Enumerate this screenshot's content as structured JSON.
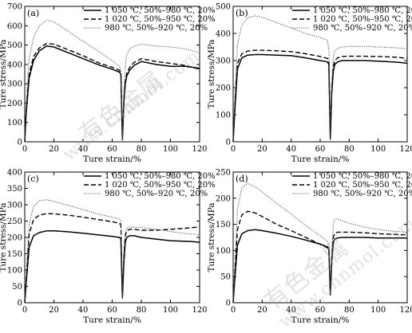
{
  "watermark": {
    "cn_text": "有色金属",
    "url_text": "www.cnnmol.com"
  },
  "chart_data": [
    {
      "type": "line",
      "panel_label": "(a)",
      "xlabel": "Ture strain/%",
      "ylabel": "Ture stress/MPa",
      "xlim": [
        0,
        120
      ],
      "ylim": [
        0,
        700
      ],
      "xticks": [
        0,
        20,
        40,
        60,
        80,
        100,
        120
      ],
      "yticks": [
        0,
        100,
        200,
        300,
        400,
        500,
        600,
        700
      ],
      "legend_position": "top-right",
      "series": [
        {
          "name": "1 050 ℃, 50%–980 ℃, 20%",
          "style": "solid",
          "x": [
            0,
            1,
            3,
            6,
            10,
            15,
            20,
            30,
            40,
            50,
            60,
            65,
            66,
            67,
            68,
            69,
            70,
            72,
            75,
            80,
            90,
            100,
            110,
            115,
            120
          ],
          "y": [
            0,
            150,
            330,
            420,
            470,
            495,
            490,
            460,
            430,
            400,
            375,
            360,
            350,
            10,
            200,
            300,
            340,
            370,
            395,
            415,
            400,
            390,
            390,
            385,
            380
          ]
        },
        {
          "name": "1 020 ℃, 50%–950 ℃, 20%",
          "style": "dashed",
          "x": [
            0,
            1,
            3,
            6,
            10,
            15,
            20,
            30,
            40,
            50,
            60,
            65,
            66,
            67,
            68,
            69,
            70,
            72,
            75,
            80,
            90,
            100,
            110,
            115,
            120
          ],
          "y": [
            0,
            160,
            350,
            440,
            485,
            508,
            505,
            475,
            445,
            410,
            385,
            370,
            355,
            10,
            210,
            310,
            355,
            385,
            410,
            430,
            415,
            405,
            395,
            385,
            375
          ]
        },
        {
          "name": "980 ℃, 50%–920 ℃, 20%",
          "style": "dotted",
          "x": [
            0,
            1,
            3,
            6,
            10,
            15,
            20,
            30,
            40,
            50,
            60,
            65,
            66,
            67,
            68,
            69,
            70,
            72,
            75,
            80,
            90,
            100,
            110,
            115,
            120
          ],
          "y": [
            0,
            200,
            430,
            540,
            600,
            630,
            620,
            570,
            520,
            470,
            420,
            390,
            370,
            10,
            250,
            390,
            450,
            480,
            495,
            505,
            495,
            490,
            480,
            470,
            460
          ]
        }
      ]
    },
    {
      "type": "line",
      "panel_label": "(b)",
      "xlabel": "Ture strain/%",
      "ylabel": "Ture stress/MPa",
      "xlim": [
        0,
        120
      ],
      "ylim": [
        0,
        500
      ],
      "xticks": [
        0,
        20,
        40,
        60,
        80,
        100,
        120
      ],
      "yticks": [
        0,
        100,
        200,
        300,
        400,
        500
      ],
      "legend_position": "top-right",
      "series": [
        {
          "name": "1 050 ℃, 50%–980 ℃, 20%",
          "style": "solid",
          "x": [
            0,
            1,
            3,
            6,
            10,
            15,
            20,
            30,
            40,
            50,
            60,
            65,
            66,
            67,
            68,
            69,
            70,
            72,
            75,
            80,
            90,
            100,
            110,
            115,
            120
          ],
          "y": [
            0,
            100,
            270,
            310,
            320,
            322,
            322,
            320,
            318,
            310,
            300,
            295,
            285,
            10,
            180,
            260,
            285,
            295,
            300,
            300,
            300,
            298,
            295,
            293,
            290
          ]
        },
        {
          "name": "1 020 ℃, 50%–950 ℃, 20%",
          "style": "dashed",
          "x": [
            0,
            1,
            3,
            6,
            10,
            15,
            20,
            30,
            40,
            50,
            60,
            65,
            66,
            67,
            68,
            69,
            70,
            72,
            75,
            80,
            90,
            100,
            110,
            115,
            120
          ],
          "y": [
            0,
            110,
            290,
            325,
            335,
            338,
            338,
            336,
            333,
            325,
            315,
            308,
            300,
            10,
            190,
            275,
            300,
            310,
            315,
            316,
            316,
            315,
            313,
            311,
            308
          ]
        },
        {
          "name": "980 ℃, 50%–920 ℃, 20%",
          "style": "dotted",
          "x": [
            0,
            1,
            3,
            6,
            10,
            15,
            20,
            30,
            40,
            50,
            60,
            65,
            66,
            67,
            68,
            69,
            70,
            72,
            75,
            80,
            90,
            100,
            110,
            115,
            120
          ],
          "y": [
            0,
            150,
            360,
            430,
            458,
            465,
            460,
            440,
            420,
            400,
            385,
            375,
            340,
            10,
            220,
            310,
            335,
            345,
            350,
            352,
            352,
            350,
            348,
            346,
            343
          ]
        }
      ]
    },
    {
      "type": "line",
      "panel_label": "(c)",
      "xlabel": "Ture strain/%",
      "ylabel": "Ture stress/MPa",
      "xlim": [
        0,
        120
      ],
      "ylim": [
        0,
        400
      ],
      "xticks": [
        0,
        20,
        40,
        60,
        80,
        100,
        120
      ],
      "yticks": [
        0,
        50,
        100,
        150,
        200,
        250,
        300,
        350,
        400
      ],
      "legend_position": "top-right",
      "series": [
        {
          "name": "1 050 ℃, 50%–980 ℃, 20%",
          "style": "solid",
          "x": [
            0,
            1,
            3,
            6,
            10,
            15,
            20,
            30,
            40,
            50,
            60,
            65,
            66,
            67,
            68,
            69,
            70,
            72,
            75,
            80,
            90,
            100,
            110,
            115,
            120
          ],
          "y": [
            0,
            60,
            170,
            205,
            215,
            220,
            220,
            217,
            213,
            208,
            203,
            200,
            195,
            15,
            120,
            185,
            200,
            205,
            205,
            200,
            195,
            190,
            188,
            187,
            185
          ]
        },
        {
          "name": "1 020 ℃, 50%–950 ℃, 20%",
          "style": "dashed",
          "x": [
            0,
            1,
            3,
            6,
            10,
            15,
            20,
            30,
            40,
            50,
            60,
            65,
            66,
            67,
            68,
            69,
            70,
            72,
            75,
            80,
            90,
            100,
            110,
            115,
            120
          ],
          "y": [
            0,
            70,
            210,
            255,
            268,
            273,
            272,
            268,
            262,
            255,
            248,
            243,
            238,
            15,
            140,
            205,
            220,
            225,
            225,
            222,
            222,
            225,
            228,
            230,
            232
          ]
        },
        {
          "name": "980 ℃, 50%–920 ℃, 20%",
          "style": "dotted",
          "x": [
            0,
            1,
            3,
            6,
            10,
            15,
            20,
            30,
            40,
            50,
            60,
            65,
            66,
            67,
            68,
            69,
            70,
            72,
            75,
            80,
            90,
            100,
            110,
            115,
            120
          ],
          "y": [
            0,
            80,
            240,
            295,
            312,
            315,
            310,
            298,
            285,
            272,
            262,
            256,
            250,
            15,
            150,
            215,
            228,
            232,
            232,
            230,
            225,
            218,
            212,
            210,
            208
          ]
        }
      ]
    },
    {
      "type": "line",
      "panel_label": "(d)",
      "xlabel": "Ture strain/%",
      "ylabel": "Ture stress/MPa",
      "xlim": [
        0,
        120
      ],
      "ylim": [
        0,
        250
      ],
      "xticks": [
        0,
        20,
        40,
        60,
        80,
        100,
        120
      ],
      "yticks": [
        0,
        50,
        100,
        150,
        200,
        250
      ],
      "legend_position": "top-right",
      "series": [
        {
          "name": "1 050 ℃, 50%–980 ℃, 20%",
          "style": "solid",
          "x": [
            0,
            1,
            3,
            6,
            10,
            15,
            20,
            30,
            40,
            50,
            60,
            65,
            66,
            67,
            68,
            69,
            70,
            72,
            75,
            80,
            90,
            100,
            110,
            115,
            120
          ],
          "y": [
            0,
            40,
            110,
            132,
            138,
            140,
            138,
            133,
            127,
            120,
            112,
            107,
            104,
            15,
            80,
            115,
            122,
            124,
            125,
            125,
            125,
            124,
            124,
            124,
            124
          ]
        },
        {
          "name": "1 020 ℃, 50%–950 ℃, 20%",
          "style": "dashed",
          "x": [
            0,
            1,
            3,
            6,
            10,
            15,
            20,
            30,
            40,
            50,
            60,
            65,
            66,
            67,
            68,
            69,
            70,
            72,
            75,
            80,
            90,
            100,
            110,
            115,
            120
          ],
          "y": [
            0,
            50,
            140,
            168,
            175,
            172,
            165,
            150,
            138,
            125,
            112,
            105,
            100,
            15,
            85,
            125,
            132,
            135,
            135,
            135,
            134,
            132,
            131,
            130,
            130
          ]
        },
        {
          "name": "980 ℃, 50%–920 ℃, 20%",
          "style": "dotted",
          "x": [
            0,
            1,
            3,
            6,
            10,
            15,
            20,
            30,
            40,
            50,
            60,
            65,
            66,
            67,
            68,
            69,
            70,
            72,
            75,
            80,
            90,
            100,
            110,
            115,
            120
          ],
          "y": [
            0,
            60,
            180,
            220,
            228,
            222,
            212,
            190,
            170,
            148,
            128,
            118,
            110,
            15,
            95,
            150,
            160,
            160,
            157,
            152,
            145,
            140,
            137,
            136,
            135
          ]
        }
      ]
    }
  ]
}
